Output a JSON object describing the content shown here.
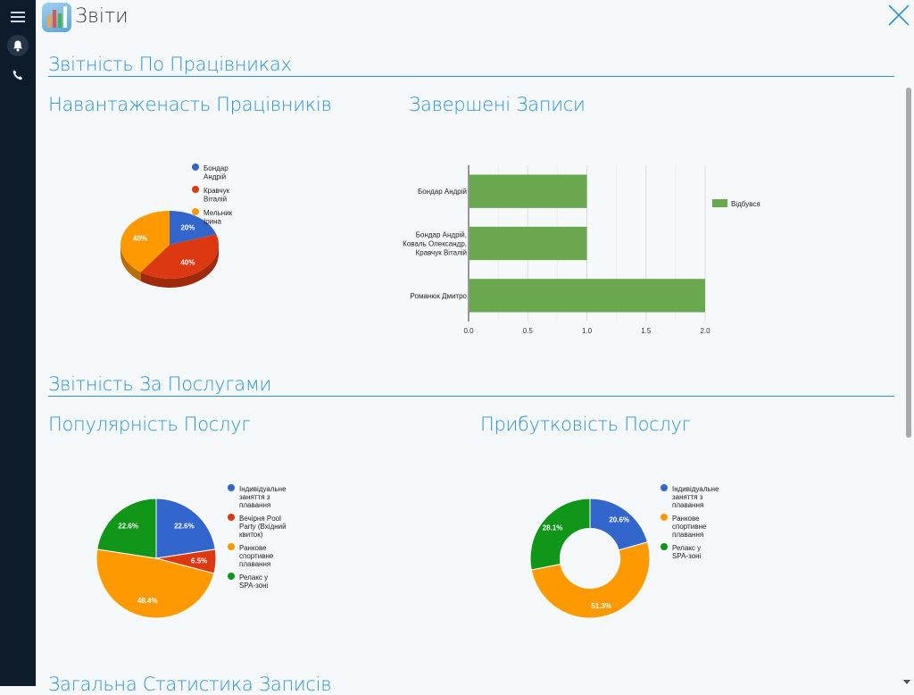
{
  "window": {
    "title": "Звіти",
    "close_icon": "close-icon"
  },
  "rail": {
    "items": [
      {
        "icon": "menu-icon"
      },
      {
        "icon": "bell-icon"
      },
      {
        "icon": "phone-icon"
      }
    ]
  },
  "sections": {
    "employees": {
      "title": "Звітність По Працівниках"
    },
    "services": {
      "title": "Звітність За Послугами"
    },
    "overall": {
      "title": "Загальна Статистика Записів"
    }
  },
  "colors": {
    "accent": "#2a93d5",
    "blue": "#3366cc",
    "red": "#dc3912",
    "orange": "#ff9900",
    "green": "#109618",
    "bar_green": "#6aa84f"
  },
  "chart_data": [
    {
      "id": "workload",
      "type": "pie",
      "style": "3d",
      "title": "Навантаженасть Працівників",
      "categories": [
        "Бондар Андрій",
        "Кравчук Віталій",
        "Мельник Ірина"
      ],
      "values": [
        20,
        40,
        40
      ],
      "labels": [
        "20%",
        "40%",
        "40%"
      ],
      "colors": [
        "#3366cc",
        "#dc3912",
        "#ff9900"
      ],
      "legend": "right"
    },
    {
      "id": "completed",
      "type": "bar",
      "orientation": "horizontal",
      "title": "Завершені Записи",
      "categories": [
        "Бондар Андрій",
        "Бондар Андрій, Коваль Олександр, Кравчук Віталій",
        "Романюк Дмитро"
      ],
      "series": [
        {
          "name": "Відбувся",
          "values": [
            1,
            1,
            2
          ],
          "color": "#6aa84f"
        }
      ],
      "xlim": [
        0,
        2
      ],
      "xticks": [
        "0.0",
        "0.5",
        "1.0",
        "1.5",
        "2.0"
      ],
      "grid": true,
      "legend": "top-right"
    },
    {
      "id": "popularity",
      "type": "pie",
      "title": "Популярність Послуг",
      "categories": [
        "Індивідуальне заняття з плавання",
        "Вечірня Pool Party (Вхідний квиток)",
        "Ранкове спортивне плавання",
        "Релакс у SPA-зоні"
      ],
      "values": [
        22.6,
        6.5,
        48.4,
        22.6
      ],
      "labels": [
        "22.6%",
        "6.5%",
        "48.4%",
        "22.6%"
      ],
      "colors": [
        "#3366cc",
        "#dc3912",
        "#ff9900",
        "#109618"
      ],
      "legend": "right"
    },
    {
      "id": "profitability",
      "type": "pie",
      "style": "donut",
      "title": "Прибутковість Послуг",
      "categories": [
        "Індивідуальне заняття з плавання",
        "Ранкове спортивне плавання",
        "Релакс у SPA-зоні"
      ],
      "values": [
        20.6,
        51.3,
        28.1
      ],
      "labels": [
        "20.6%",
        "51.3%",
        "28.1%"
      ],
      "colors": [
        "#3366cc",
        "#ff9900",
        "#109618"
      ],
      "legend": "right"
    }
  ]
}
